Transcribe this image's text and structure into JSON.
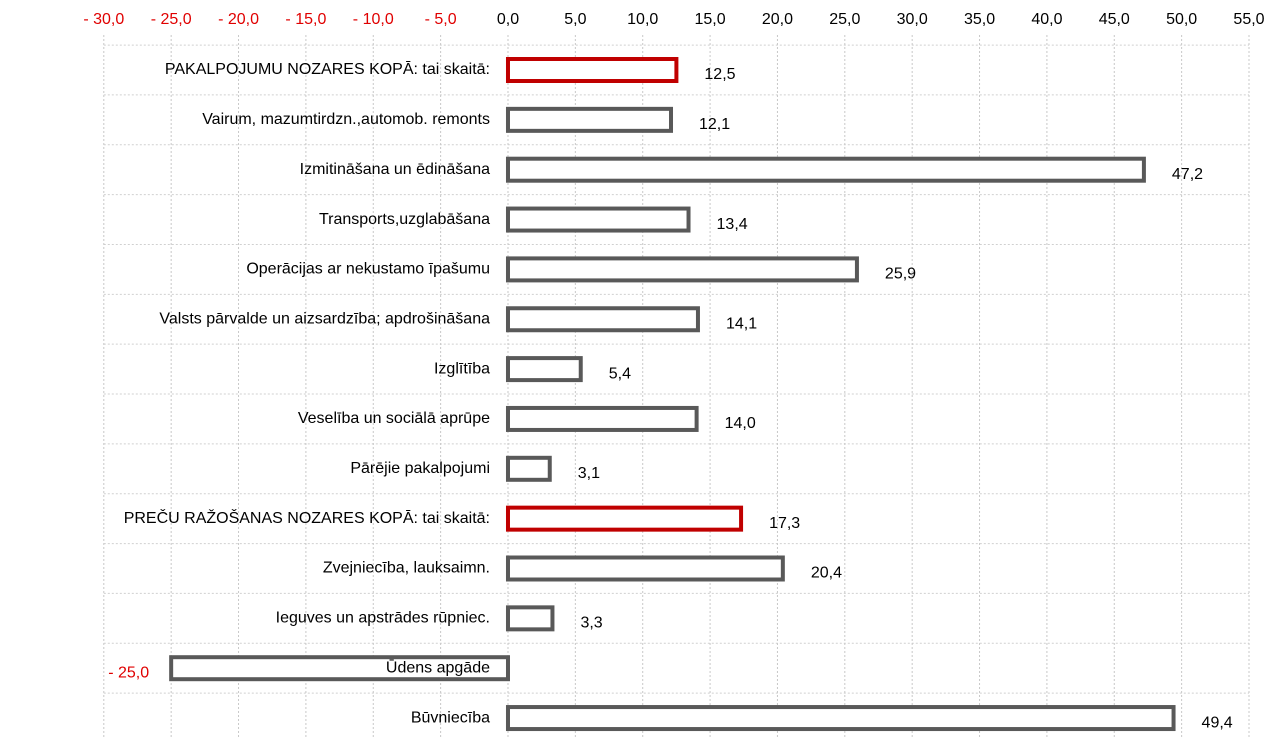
{
  "chart_data": {
    "type": "bar",
    "orientation": "horizontal",
    "categories": [
      "PAKALPOJUMU NOZARES KOPĀ: tai skaitā:",
      "Vairum, mazumtirdzn.,automob. remonts",
      "Izmitināšana un ēdināšana",
      "Transports,uzglabāšana",
      "Operācijas ar nekustamo īpašumu",
      "Valsts pārvalde un aizsardzība; apdrošināšana",
      "Izglītība",
      "Veselība un sociālā aprūpe",
      "Pārējie pakalpojumi",
      "PREČU RAŽOŠANAS NOZARES KOPĀ: tai skaitā:",
      "Zvejniecība, lauksaimn.",
      "Ieguves un apstrādes rūpniec.",
      "Ūdens apgāde",
      "Būvniecība"
    ],
    "values": [
      12.5,
      12.1,
      47.2,
      13.4,
      25.9,
      14.1,
      5.4,
      14.0,
      3.1,
      17.3,
      20.4,
      3.3,
      -25.0,
      49.4
    ],
    "value_labels": [
      "12,5",
      "12,1",
      "47,2",
      "13,4",
      "25,9",
      "14,1",
      "5,4",
      "14,0",
      "3,1",
      "17,3",
      "20,4",
      "3,3",
      "- 25,0",
      "49,4"
    ],
    "colors": [
      "#c00000",
      "#595959",
      "#595959",
      "#595959",
      "#595959",
      "#595959",
      "#595959",
      "#595959",
      "#595959",
      "#c00000",
      "#595959",
      "#595959",
      "#595959",
      "#595959"
    ],
    "negative_label_color": "#e00000",
    "xlim": [
      -30,
      55
    ],
    "xticks": [
      {
        "value": -30,
        "label": "- 30,0"
      },
      {
        "value": -25,
        "label": "- 25,0"
      },
      {
        "value": -20,
        "label": "- 20,0"
      },
      {
        "value": -15,
        "label": "- 15,0"
      },
      {
        "value": -10,
        "label": "- 10,0"
      },
      {
        "value": -5,
        "label": "- 5,0"
      },
      {
        "value": 0,
        "label": "0,0"
      },
      {
        "value": 5,
        "label": "5,0"
      },
      {
        "value": 10,
        "label": "10,0"
      },
      {
        "value": 15,
        "label": "15,0"
      },
      {
        "value": 20,
        "label": "20,0"
      },
      {
        "value": 25,
        "label": "25,0"
      },
      {
        "value": 30,
        "label": "30,0"
      },
      {
        "value": 35,
        "label": "35,0"
      },
      {
        "value": 40,
        "label": "40,0"
      },
      {
        "value": 45,
        "label": "45,0"
      },
      {
        "value": 50,
        "label": "50,0"
      },
      {
        "value": 55,
        "label": "55,0"
      }
    ],
    "grid": true
  }
}
